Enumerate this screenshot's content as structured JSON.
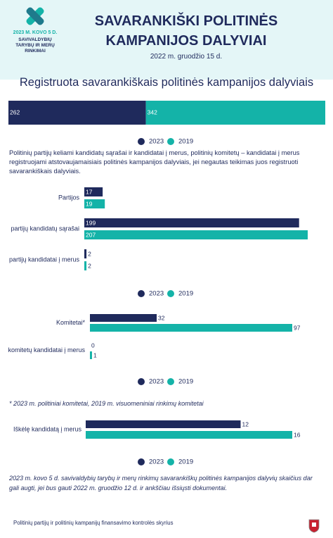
{
  "header": {
    "logo_date": "2023 M. KOVO 5 D.",
    "logo_text": "SAVIVALDYBIŲ TARYBŲ IR MERŲ RINKIMAI",
    "title": "SAVARANKIŠKI POLITINĖS KAMPANIJOS DALYVIAI",
    "date": "2022 m. gruodžio 15 d."
  },
  "chart_data": [
    {
      "type": "stacked_bar",
      "title": "Registruota savarankiškais politinės kampanijos dalyviais",
      "series": [
        {
          "name": "2023",
          "color": "#1f2a5c",
          "values": [
            262
          ]
        },
        {
          "name": "2019",
          "color": "#14b3a8",
          "values": [
            342
          ]
        }
      ],
      "label_position": "inside"
    },
    {
      "type": "bar",
      "categories": [
        "Partijos",
        "partijų kandidatų sąrašai",
        "partijų kandidatai į merus"
      ],
      "series": [
        {
          "name": "2023",
          "color": "#1f2a5c",
          "values": [
            17,
            199,
            2
          ]
        },
        {
          "name": "2019",
          "color": "#14b3a8",
          "values": [
            19,
            207,
            2
          ]
        }
      ],
      "label_position": "inside"
    },
    {
      "type": "bar",
      "categories": [
        "Komitetai*",
        "komitetų kandidatai į merus"
      ],
      "series": [
        {
          "name": "2023",
          "color": "#1f2a5c",
          "values": [
            32,
            0
          ]
        },
        {
          "name": "2019",
          "color": "#14b3a8",
          "values": [
            97,
            1
          ]
        }
      ],
      "label_position": "outside"
    },
    {
      "type": "bar",
      "categories": [
        "Iškėlę kandidatą į merus"
      ],
      "series": [
        {
          "name": "2023",
          "color": "#1f2a5c",
          "values": [
            12
          ]
        },
        {
          "name": "2019",
          "color": "#14b3a8",
          "values": [
            16
          ]
        }
      ],
      "label_position": "outside"
    }
  ],
  "description": "Politinių partijų keliami kandidatų sąrašai ir kandidatai į merus, politinių komitetų – kandidatai į merus registruojami atstovaujamaisiais politinės kampanijos dalyviais, jei negautas teikimas juos registruoti savarankiškais dalyviais.",
  "footnote": "* 2023 m. politiniai komitetai, 2019 m. visuomeniniai rinkimų komitetai",
  "note": "2023 m. kovo 5 d. savivaldybių tarybų ir merų rinkimų savarankiškų politinės kampanijos dalyvių skaičius dar gali augti, jei bus gauti 2022 m. gruodžio 12 d. ir ankščiau išsiųsti dokumentai.",
  "footer": "Politinių partijų ir politinių kampanijų finansavimo kontrolės skyrius"
}
